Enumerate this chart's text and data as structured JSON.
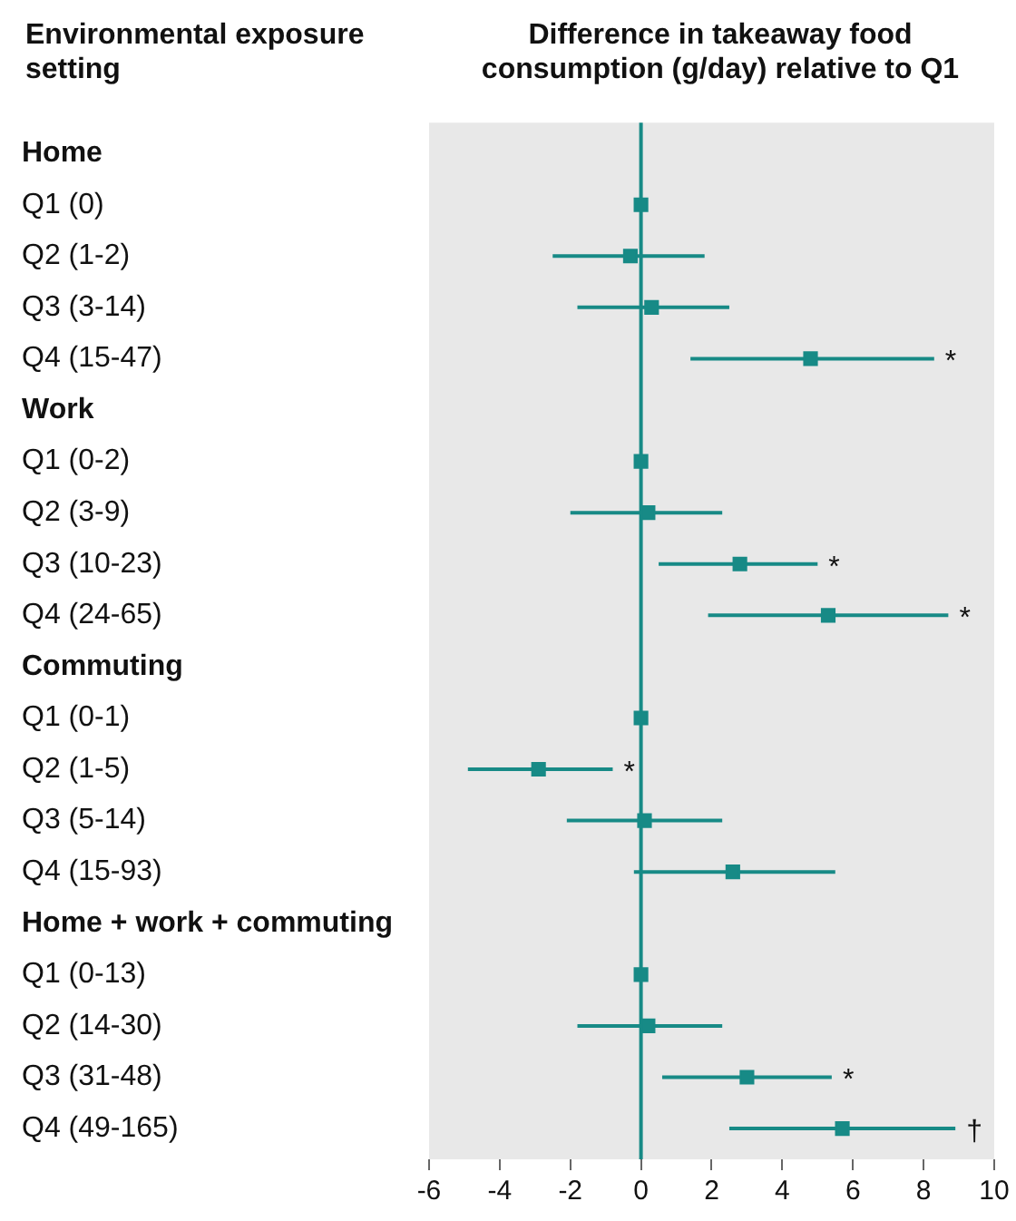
{
  "chart_data": {
    "type": "scatter",
    "orientation": "horizontal",
    "xlabel": "Difference in takeaway food consumption (g/day) relative to Q1",
    "ylabel": "Environmental exposure setting",
    "categories": [
      "Home",
      "Q1 (0)",
      "Q2 (1-2)",
      "Q3 (3-14)",
      "Q4 (15-47)",
      "Work",
      "Q1 (0-2)",
      "Q2 (3-9)",
      "Q3 (10-23)",
      "Q4 (24-65)",
      "Commuting",
      "Q1 (0-1)",
      "Q2 (1-5)",
      "Q3 (5-14)",
      "Q4 (15-93)",
      "Home + work + commuting",
      "Q1 (0-13)",
      "Q2 (14-30)",
      "Q3 (31-48)",
      "Q4 (49-165)"
    ],
    "values": [
      null,
      0,
      -0.3,
      0.3,
      4.8,
      null,
      0,
      0.2,
      2.8,
      5.3,
      null,
      0,
      -2.9,
      0.1,
      2.6,
      null,
      0,
      0.2,
      3.0,
      5.7
    ],
    "errors": [
      null,
      null,
      [
        -2.5,
        1.8
      ],
      [
        -1.8,
        2.5
      ],
      [
        1.4,
        8.3
      ],
      null,
      null,
      [
        -2.0,
        2.3
      ],
      [
        0.5,
        5.0
      ],
      [
        1.9,
        8.7
      ],
      null,
      null,
      [
        -4.9,
        -0.8
      ],
      [
        -2.1,
        2.3
      ],
      [
        -0.2,
        5.5
      ],
      null,
      null,
      [
        -1.8,
        2.3
      ],
      [
        0.6,
        5.4
      ],
      [
        2.5,
        8.9
      ]
    ],
    "color": "#178a86",
    "marker": "square",
    "xlim": [
      -6,
      10
    ],
    "xticks": [
      -6,
      -4,
      -2,
      0,
      2,
      4,
      6,
      8,
      10
    ],
    "ref_lines": [
      {
        "axis": "x",
        "value": 0,
        "color": "#178a86"
      }
    ],
    "annotations": [
      {
        "text": "*",
        "x": 8.3,
        "y": "Q4 (15-47)"
      },
      {
        "text": "*",
        "x": 5.0,
        "y": "Q3 (10-23)"
      },
      {
        "text": "*",
        "x": 8.7,
        "y": "Q4 (24-65)"
      },
      {
        "text": "*",
        "x": -0.8,
        "y": "Q2 (1-5)"
      },
      {
        "text": "*",
        "x": 5.4,
        "y": "Q3 (31-48)"
      },
      {
        "text": "†",
        "x": 8.9,
        "y": "Q4 (49-165)"
      }
    ]
  }
}
